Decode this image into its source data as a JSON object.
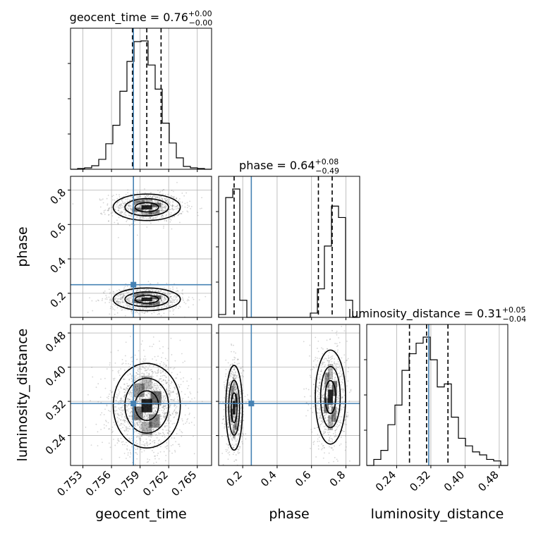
{
  "colors": {
    "truth": "#4682b4",
    "line": "#000000",
    "grid": "#b0b0b0",
    "points": "#888888"
  },
  "chart_data": {
    "type": "corner",
    "parameters": [
      "geocent_time",
      "phase",
      "luminosity_distance"
    ],
    "truths": {
      "geocent_time": 0.7583,
      "phase": 0.25,
      "luminosity_distance": 0.315
    },
    "ranges": {
      "geocent_time": [
        0.7517,
        0.7665
      ],
      "phase": [
        0.06,
        0.88
      ],
      "luminosity_distance": [
        0.17,
        0.5
      ]
    },
    "ticks": {
      "geocent_time": [
        0.753,
        0.756,
        0.759,
        0.762,
        0.765
      ],
      "phase": [
        0.2,
        0.4,
        0.6,
        0.8
      ],
      "luminosity_distance": [
        0.24,
        0.32,
        0.4,
        0.48
      ]
    },
    "tick_labels": {
      "geocent_time": [
        "0.753",
        "0.756",
        "0.759",
        "0.762",
        "0.765"
      ],
      "phase": [
        "0.2",
        "0.4",
        "0.6",
        "0.8"
      ],
      "luminosity_distance": [
        "0.24",
        "0.32",
        "0.40",
        "0.48"
      ]
    },
    "axis_labels": {
      "geocent_time": "geocent_time",
      "phase": "phase",
      "luminosity_distance": "luminosity_distance"
    },
    "titles": [
      {
        "param": "geocent_time",
        "text": "geocent_time = 0.76",
        "sup": "+0.00",
        "sub": "−0.00"
      },
      {
        "param": "phase",
        "text": "phase = 0.64",
        "sup": "+0.08",
        "sub": "−0.49"
      },
      {
        "param": "luminosity_distance",
        "text": "luminosity_distance = 0.31",
        "sup": "+0.05",
        "sub": "−0.04"
      }
    ],
    "quantiles": {
      "geocent_time": [
        0.7582,
        0.7597,
        0.7612
      ],
      "phase": [
        0.15,
        0.64,
        0.72
      ],
      "luminosity_distance": [
        0.27,
        0.31,
        0.36
      ]
    },
    "histograms": {
      "geocent_time": {
        "bin_edges": [
          0.7517,
          0.75244,
          0.75318,
          0.75392,
          0.75466,
          0.7554,
          0.75614,
          0.75688,
          0.75762,
          0.75836,
          0.7591,
          0.75984,
          0.76058,
          0.76132,
          0.76206,
          0.7628,
          0.76354,
          0.76428,
          0.76502,
          0.76576,
          0.7665
        ],
        "counts": [
          0,
          1,
          2,
          5,
          14,
          36,
          62,
          110,
          152,
          180,
          181,
          147,
          113,
          65,
          37,
          16,
          4,
          2,
          1,
          0
        ]
      },
      "phase": {
        "bin_edges": [
          0.06,
          0.101,
          0.142,
          0.183,
          0.224,
          0.265,
          0.306,
          0.347,
          0.388,
          0.429,
          0.47,
          0.511,
          0.552,
          0.593,
          0.634,
          0.675,
          0.716,
          0.757,
          0.798,
          0.839,
          0.88
        ],
        "counts": [
          2,
          84,
          90,
          12,
          0,
          0,
          0,
          0,
          0,
          0,
          0,
          0,
          0,
          3,
          20,
          50,
          78,
          70,
          12,
          0
        ]
      },
      "luminosity_distance": {
        "bin_edges": [
          0.17,
          0.1865,
          0.203,
          0.2195,
          0.236,
          0.2525,
          0.269,
          0.2855,
          0.302,
          0.3185,
          0.335,
          0.3515,
          0.368,
          0.3845,
          0.401,
          0.4175,
          0.434,
          0.4505,
          0.467,
          0.4835,
          0.5
        ],
        "counts": [
          0,
          4,
          10,
          27,
          40,
          63,
          74,
          81,
          85,
          70,
          52,
          54,
          32,
          18,
          13,
          9,
          7,
          4,
          3,
          0
        ]
      }
    },
    "grid": true
  }
}
